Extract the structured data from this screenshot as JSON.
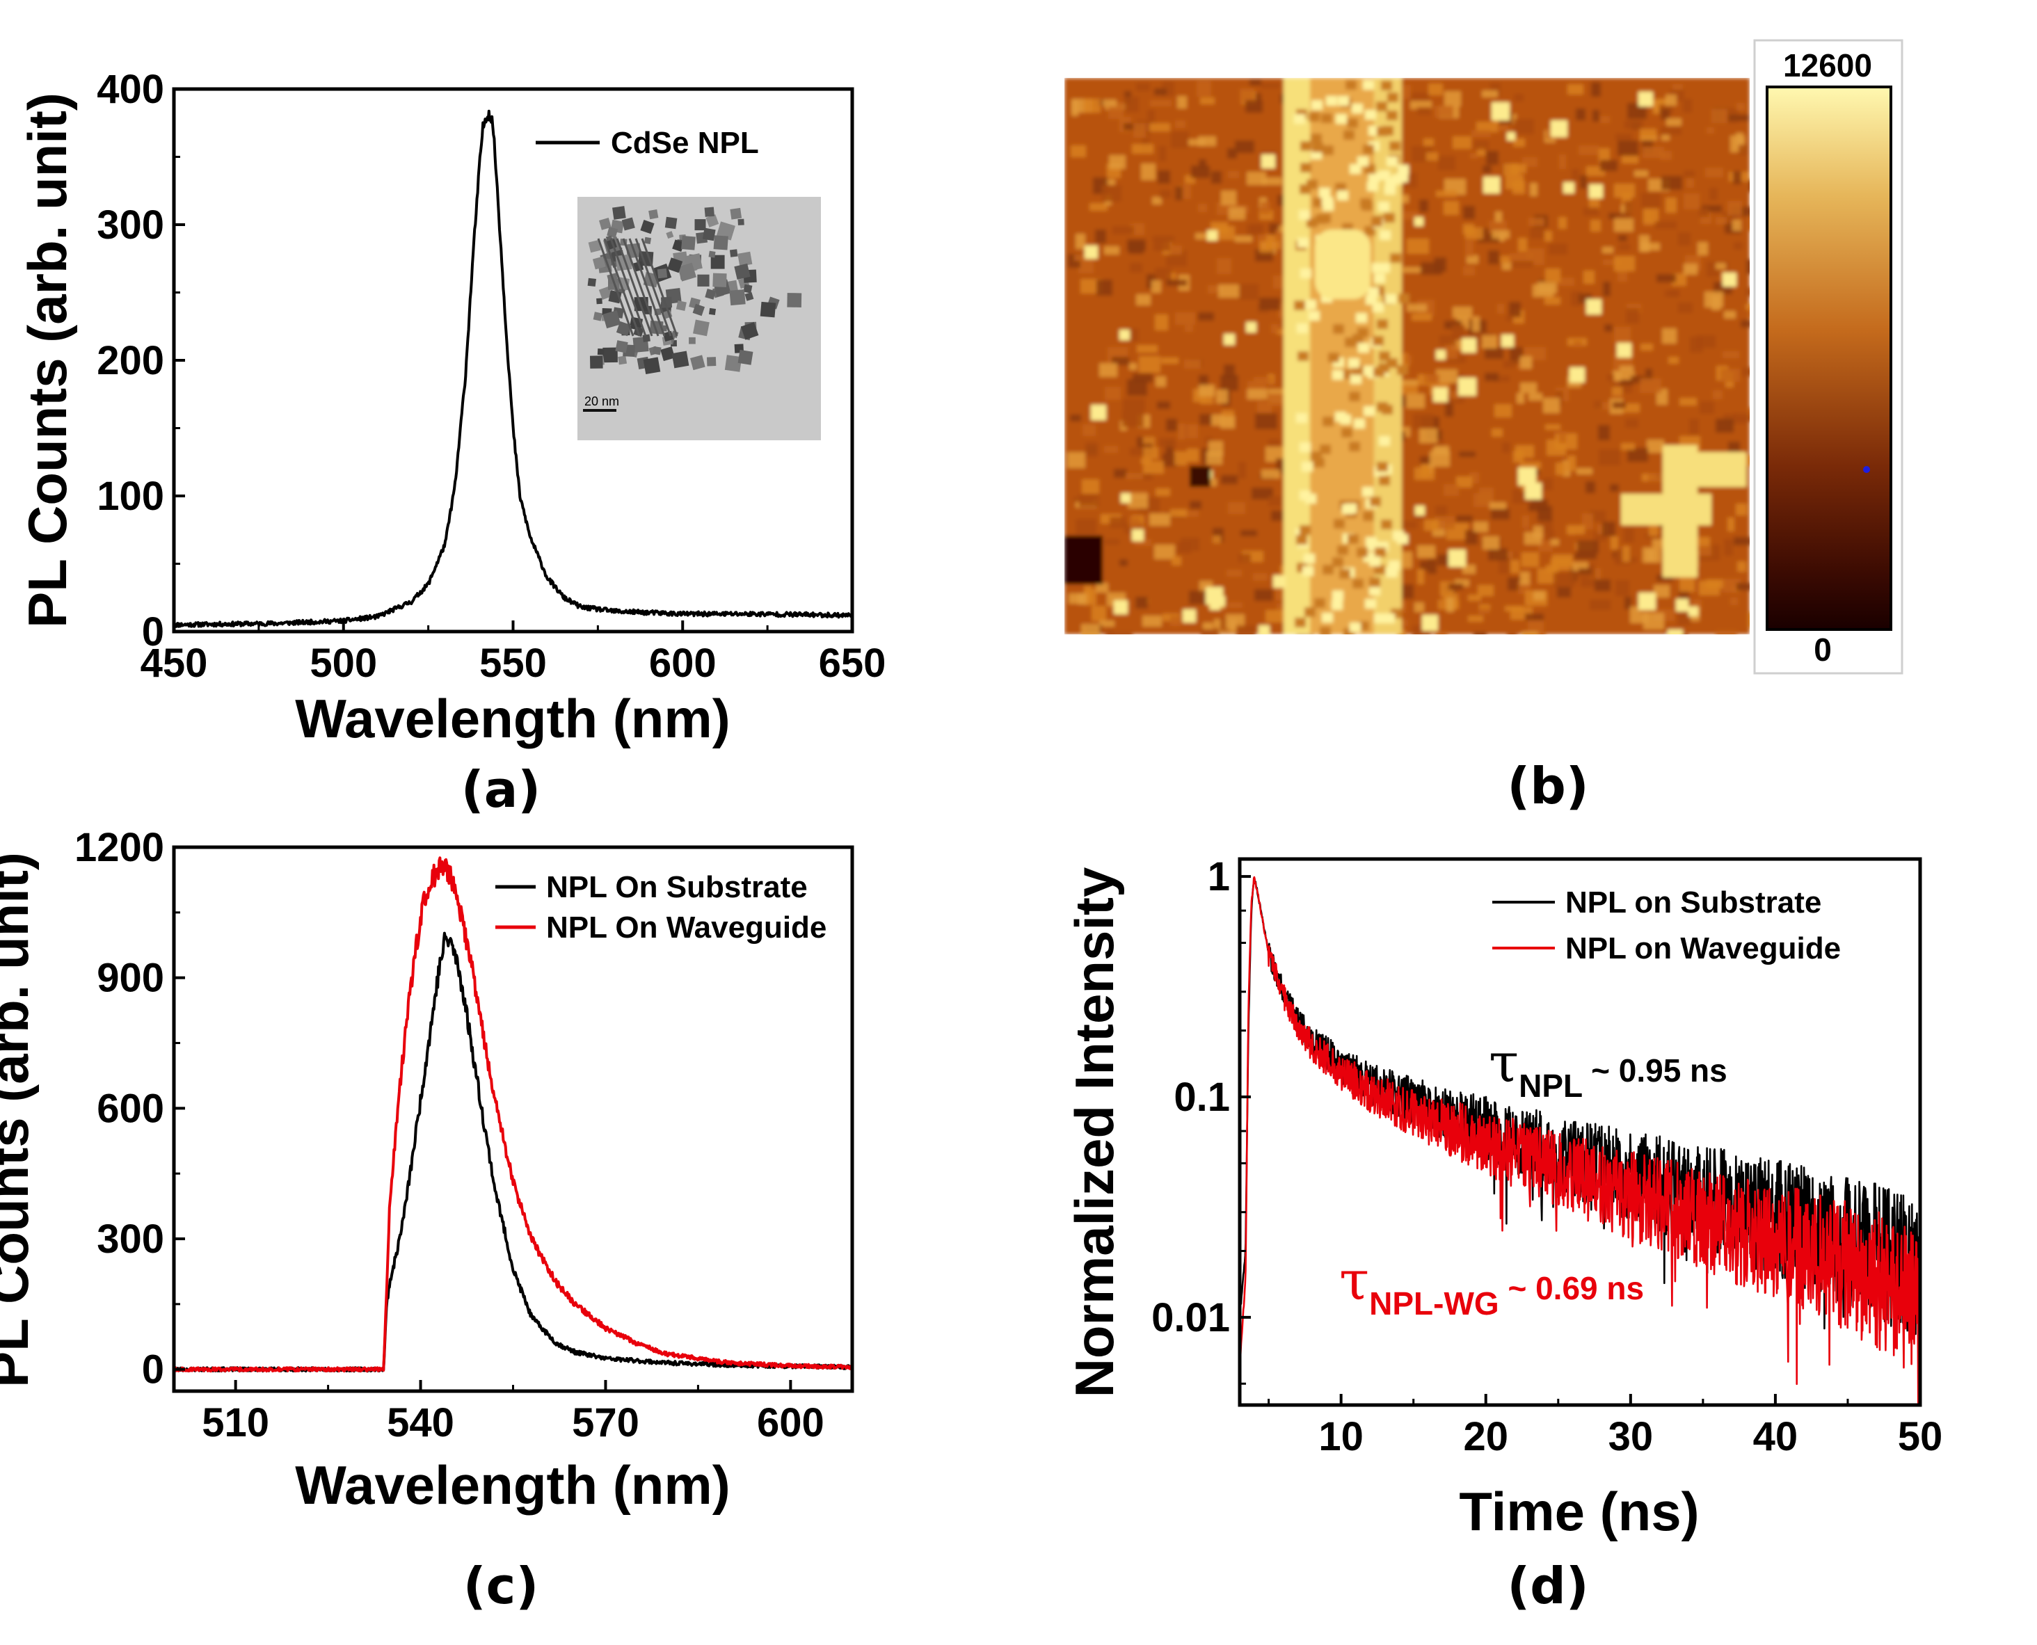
{
  "chart_data": [
    {
      "panel": "a",
      "panel_label": "(a)",
      "type": "line",
      "xlabel": "Wavelength (nm)",
      "ylabel": "PL Counts (arb. unit)",
      "xlim": [
        450,
        650
      ],
      "ylim": [
        0,
        400
      ],
      "xticks": [
        450,
        500,
        550,
        600,
        650
      ],
      "yticks": [
        0,
        100,
        200,
        300,
        400
      ],
      "legend_position": "top-right",
      "inset": {
        "type": "TEM micrograph",
        "scale_bar": "20 nm"
      },
      "series": [
        {
          "name": "CdSe NPL",
          "color": "#000000",
          "x": [
            450,
            480,
            500,
            510,
            520,
            525,
            530,
            533,
            536,
            538,
            540,
            541,
            542,
            543,
            544,
            545,
            546,
            548,
            550,
            552,
            555,
            560,
            565,
            570,
            580,
            600,
            620,
            650
          ],
          "y": [
            5,
            6,
            8,
            11,
            22,
            35,
            65,
            110,
            190,
            270,
            340,
            370,
            380,
            382,
            375,
            340,
            300,
            220,
            150,
            100,
            70,
            40,
            25,
            18,
            15,
            13,
            13,
            12
          ]
        }
      ]
    },
    {
      "panel": "b",
      "panel_label": "(b)",
      "type": "heatmap",
      "colorbar": {
        "min": 0,
        "max": 12600,
        "max_label": "12600",
        "min_label": "0"
      }
    },
    {
      "panel": "c",
      "panel_label": "(c)",
      "type": "line",
      "xlabel": "Wavelength (nm)",
      "ylabel": "PL Counts (arb. unit)",
      "xlim": [
        500,
        610
      ],
      "ylim": [
        -50,
        1200
      ],
      "xticks": [
        510,
        540,
        570,
        600
      ],
      "yticks": [
        0,
        300,
        600,
        900,
        1200
      ],
      "legend_position": "top-right",
      "series": [
        {
          "name": "NPL On Substrate",
          "color": "#000000",
          "x": [
            500,
            534,
            534.5,
            535,
            536,
            537,
            538,
            539,
            540,
            541,
            542,
            543,
            544,
            545,
            546,
            547,
            548,
            550,
            552,
            555,
            558,
            562,
            565,
            570,
            580,
            590,
            610
          ],
          "y": [
            0,
            0,
            150,
            200,
            260,
            330,
            420,
            520,
            620,
            720,
            820,
            920,
            990,
            980,
            930,
            860,
            770,
            590,
            420,
            230,
            120,
            60,
            40,
            25,
            15,
            10,
            5
          ]
        },
        {
          "name": "NPL On Waveguide",
          "color": "#e8000b",
          "x": [
            500,
            534,
            534.5,
            535,
            536,
            537,
            538,
            539,
            540,
            541,
            542,
            543,
            544,
            545,
            546,
            548,
            550,
            552,
            555,
            558,
            562,
            565,
            570,
            575,
            580,
            590,
            600,
            610
          ],
          "y": [
            0,
            0,
            180,
            380,
            550,
            700,
            830,
            940,
            1040,
            1100,
            1130,
            1150,
            1155,
            1130,
            1080,
            950,
            780,
            620,
            430,
            300,
            200,
            150,
            95,
            60,
            35,
            15,
            8,
            5
          ]
        }
      ]
    },
    {
      "panel": "d",
      "panel_label": "(d)",
      "type": "line",
      "yscale": "log",
      "xlabel": "Time (ns)",
      "ylabel": "Normalized Intensity",
      "xlim": [
        3,
        50
      ],
      "ylim": [
        0.004,
        1.2
      ],
      "xticks": [
        10,
        20,
        30,
        40,
        50
      ],
      "ytick_labels": [
        "0.01",
        "0.1",
        "1"
      ],
      "legend_position": "top-right",
      "series": [
        {
          "name": "NPL on Substrate",
          "color": "#000000",
          "x": [
            3,
            3.4,
            3.6,
            3.8,
            4,
            4.3,
            5,
            6,
            7,
            8,
            10,
            12,
            15,
            20,
            25,
            30,
            35,
            40,
            45,
            50
          ],
          "y": [
            0.01,
            0.02,
            0.2,
            0.7,
            1.0,
            0.8,
            0.45,
            0.3,
            0.22,
            0.18,
            0.14,
            0.115,
            0.095,
            0.072,
            0.055,
            0.044,
            0.035,
            0.028,
            0.022,
            0.017
          ]
        },
        {
          "name": "NPL on Waveguide",
          "color": "#e8000b",
          "x": [
            3,
            3.4,
            3.6,
            3.8,
            4,
            4.3,
            5,
            6,
            7,
            8,
            10,
            12,
            15,
            20,
            25,
            30,
            35,
            40,
            45,
            50
          ],
          "y": [
            0.006,
            0.015,
            0.25,
            0.75,
            1.0,
            0.8,
            0.44,
            0.29,
            0.21,
            0.17,
            0.13,
            0.105,
            0.084,
            0.062,
            0.047,
            0.036,
            0.028,
            0.022,
            0.017,
            0.012
          ]
        }
      ],
      "annotations": [
        {
          "symbol": "τ",
          "sub": "NPL",
          "text": " ~ 0.95 ns",
          "color": "#000000"
        },
        {
          "symbol": "τ",
          "sub": "NPL-WG",
          "text": " ~ 0.69 ns",
          "color": "#e8000b"
        }
      ]
    }
  ]
}
